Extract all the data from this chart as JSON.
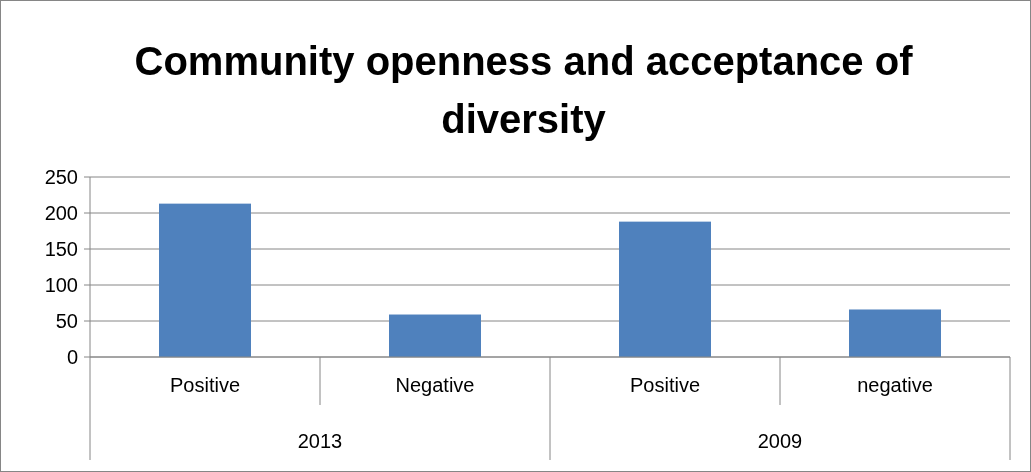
{
  "chart_data": {
    "type": "bar",
    "title": "Community openness and acceptance of diversity",
    "categories": [
      "Positive",
      "Negative",
      "Positive",
      "negative"
    ],
    "values": [
      213,
      59,
      188,
      66
    ],
    "color": "#4f81bd",
    "ylim": [
      0,
      250
    ],
    "yticks": [
      0,
      50,
      100,
      150,
      200,
      250
    ],
    "grid": "y",
    "annotations": [
      "2013",
      "2009"
    ]
  }
}
